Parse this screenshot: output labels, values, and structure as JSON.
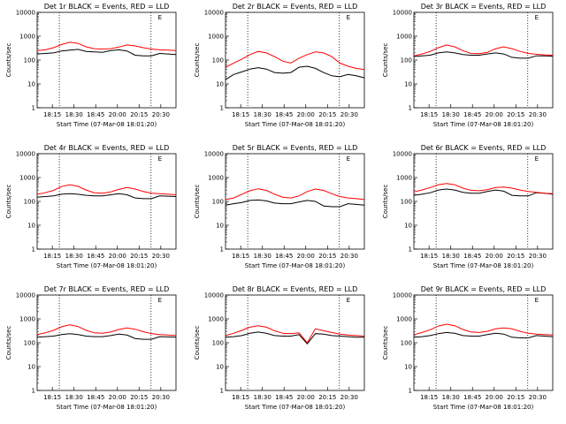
{
  "common": {
    "x_ticks": [
      "18:15",
      "18:30",
      "18:45",
      "20:00",
      "20:15",
      "20:30"
    ],
    "y_ticks": [
      "1",
      "10",
      "100",
      "1000",
      "10000"
    ],
    "ylabel": "Counts/sec",
    "xlabel": "Start Time (07-Mar-08 18:01:20)",
    "flag": "E",
    "colors": {
      "events": "#000000",
      "lld": "#ff0000"
    },
    "y_scale": "log",
    "ylim": [
      1,
      10000
    ]
  },
  "chart_data": [
    {
      "type": "line",
      "title": "Det 1r BLACK = Events, RED = LLD",
      "series": [
        {
          "color": "#000000",
          "values": [
            180,
            190,
            200,
            240,
            260,
            280,
            230,
            220,
            210,
            250,
            270,
            240,
            160,
            150,
            150,
            190,
            180,
            170
          ]
        },
        {
          "color": "#ff0000",
          "values": [
            250,
            270,
            330,
            450,
            560,
            500,
            360,
            300,
            290,
            300,
            350,
            430,
            390,
            330,
            290,
            270,
            260,
            250
          ]
        }
      ]
    },
    {
      "type": "line",
      "title": "Det 2r BLACK = Events, RED = LLD",
      "series": [
        {
          "color": "#000000",
          "values": [
            15,
            25,
            32,
            42,
            48,
            42,
            30,
            28,
            30,
            50,
            55,
            45,
            30,
            22,
            20,
            25,
            22,
            18
          ]
        },
        {
          "color": "#ff0000",
          "values": [
            50,
            75,
            110,
            170,
            230,
            200,
            140,
            90,
            75,
            120,
            170,
            220,
            200,
            140,
            75,
            55,
            45,
            40
          ]
        }
      ]
    },
    {
      "type": "line",
      "title": "Det 3r BLACK = Events, RED = LLD",
      "series": [
        {
          "color": "#000000",
          "values": [
            140,
            150,
            160,
            200,
            220,
            200,
            170,
            160,
            160,
            180,
            200,
            180,
            130,
            120,
            120,
            150,
            150,
            145
          ]
        },
        {
          "color": "#ff0000",
          "values": [
            150,
            180,
            230,
            330,
            430,
            360,
            250,
            190,
            185,
            210,
            300,
            360,
            300,
            230,
            190,
            175,
            165,
            160
          ]
        }
      ]
    },
    {
      "type": "line",
      "title": "Det 4r BLACK = Events, RED = LLD",
      "series": [
        {
          "color": "#000000",
          "values": [
            150,
            160,
            170,
            200,
            210,
            200,
            180,
            170,
            170,
            190,
            210,
            190,
            140,
            130,
            130,
            170,
            165,
            160
          ]
        },
        {
          "color": "#ff0000",
          "values": [
            200,
            230,
            290,
            420,
            500,
            430,
            300,
            230,
            220,
            250,
            320,
            380,
            330,
            260,
            220,
            210,
            200,
            190
          ]
        }
      ]
    },
    {
      "type": "line",
      "title": "Det 5r BLACK = Events, RED = LLD",
      "series": [
        {
          "color": "#000000",
          "values": [
            70,
            80,
            90,
            110,
            115,
            105,
            85,
            80,
            80,
            95,
            110,
            100,
            65,
            60,
            60,
            80,
            75,
            70
          ]
        },
        {
          "color": "#ff0000",
          "values": [
            120,
            140,
            200,
            280,
            340,
            290,
            200,
            150,
            140,
            170,
            260,
            330,
            290,
            210,
            160,
            140,
            130,
            120
          ]
        }
      ]
    },
    {
      "type": "line",
      "title": "Det 6r BLACK = Events, RED = LLD",
      "series": [
        {
          "color": "#000000",
          "values": [
            180,
            200,
            230,
            300,
            330,
            300,
            240,
            220,
            220,
            260,
            300,
            270,
            180,
            170,
            170,
            230,
            220,
            200
          ]
        },
        {
          "color": "#ff0000",
          "values": [
            250,
            300,
            380,
            500,
            560,
            500,
            360,
            290,
            280,
            310,
            380,
            400,
            360,
            300,
            260,
            240,
            220,
            210
          ]
        }
      ]
    },
    {
      "type": "line",
      "title": "Det 7r BLACK = Events, RED = LLD",
      "series": [
        {
          "color": "#000000",
          "values": [
            170,
            180,
            190,
            220,
            240,
            220,
            190,
            180,
            180,
            200,
            230,
            210,
            150,
            140,
            140,
            180,
            175,
            170
          ]
        },
        {
          "color": "#ff0000",
          "values": [
            220,
            260,
            330,
            470,
            560,
            480,
            330,
            260,
            250,
            280,
            360,
            420,
            370,
            290,
            240,
            220,
            210,
            200
          ]
        }
      ]
    },
    {
      "type": "line",
      "title": "Det 8r BLACK = Events, RED = LLD",
      "series": [
        {
          "color": "#000000",
          "values": [
            170,
            180,
            200,
            250,
            280,
            250,
            200,
            190,
            190,
            220,
            90,
            240,
            230,
            200,
            190,
            180,
            170,
            170
          ]
        },
        {
          "color": "#ff0000",
          "values": [
            200,
            250,
            330,
            450,
            520,
            450,
            320,
            250,
            240,
            260,
            100,
            380,
            320,
            270,
            230,
            210,
            200,
            190
          ]
        }
      ]
    },
    {
      "type": "line",
      "title": "Det 9r BLACK = Events, RED = LLD",
      "series": [
        {
          "color": "#000000",
          "values": [
            170,
            180,
            200,
            240,
            270,
            250,
            200,
            190,
            190,
            220,
            250,
            230,
            170,
            160,
            160,
            200,
            190,
            180
          ]
        },
        {
          "color": "#ff0000",
          "values": [
            220,
            270,
            350,
            500,
            600,
            520,
            360,
            280,
            270,
            300,
            380,
            420,
            380,
            300,
            250,
            230,
            220,
            210
          ]
        }
      ]
    }
  ]
}
